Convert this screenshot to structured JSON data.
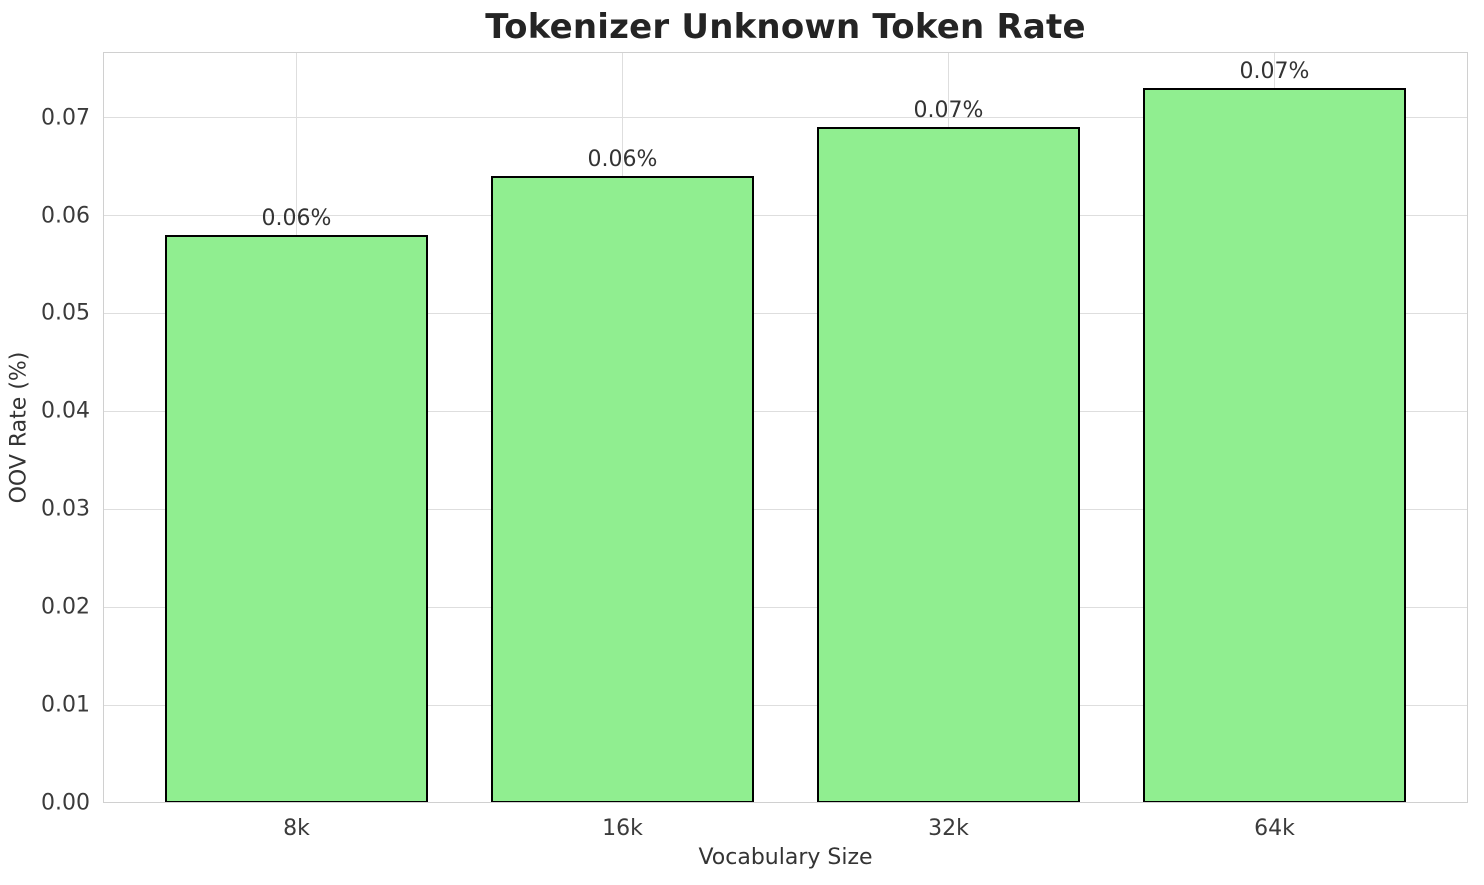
{
  "chart_data": {
    "type": "bar",
    "title": "Tokenizer Unknown Token Rate",
    "xlabel": "Vocabulary Size",
    "ylabel": "OOV Rate (%)",
    "categories": [
      "8k",
      "16k",
      "32k",
      "64k"
    ],
    "values": [
      0.058,
      0.064,
      0.069,
      0.073
    ],
    "bar_labels": [
      "0.06%",
      "0.06%",
      "0.07%",
      "0.07%"
    ],
    "ytick_values": [
      0.0,
      0.01,
      0.02,
      0.03,
      0.04,
      0.05,
      0.06,
      0.07
    ],
    "ytick_labels": [
      "0.00",
      "0.01",
      "0.02",
      "0.03",
      "0.04",
      "0.05",
      "0.06",
      "0.07"
    ],
    "ylim": [
      0,
      0.0767
    ],
    "grid": true,
    "legend": "none",
    "colors": {
      "bar_fill": "#90EE90",
      "bar_edge": "#000000",
      "grid": "#dedede",
      "spine": "#d0d0d0",
      "tick_text": "#3b3b3b",
      "axis_label_text": "#343434",
      "bar_label_text": "#333333",
      "title_text": "#242424"
    }
  }
}
